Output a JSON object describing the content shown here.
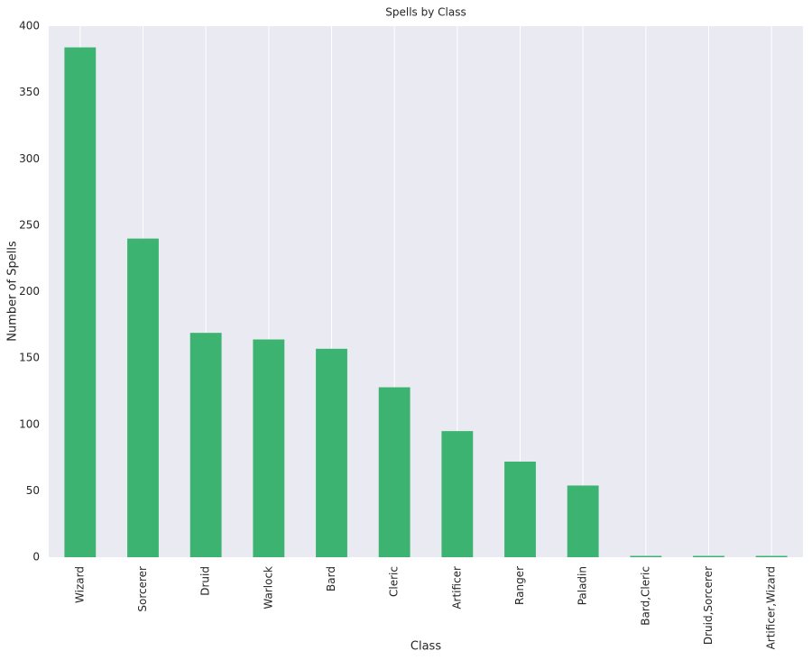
{
  "chart_data": {
    "type": "bar",
    "title": "Spells by Class",
    "x_label": "Class",
    "y_label": "Number of Spells",
    "categories": [
      "Wizard",
      "Sorcerer",
      "Druid",
      "Warlock",
      "Bard",
      "Cleric",
      "Artificer",
      "Ranger",
      "Paladin",
      "Bard,Cleric",
      "Druid,Sorcerer",
      "Artificer,Wizard"
    ],
    "values": [
      384,
      240,
      169,
      164,
      157,
      128,
      95,
      72,
      54,
      1,
      1,
      1
    ],
    "color": "#3cb371",
    "ylim": [
      0,
      400
    ],
    "yticks": [
      0,
      50,
      100,
      150,
      200,
      250,
      300,
      350,
      400
    ],
    "grid": "x"
  }
}
